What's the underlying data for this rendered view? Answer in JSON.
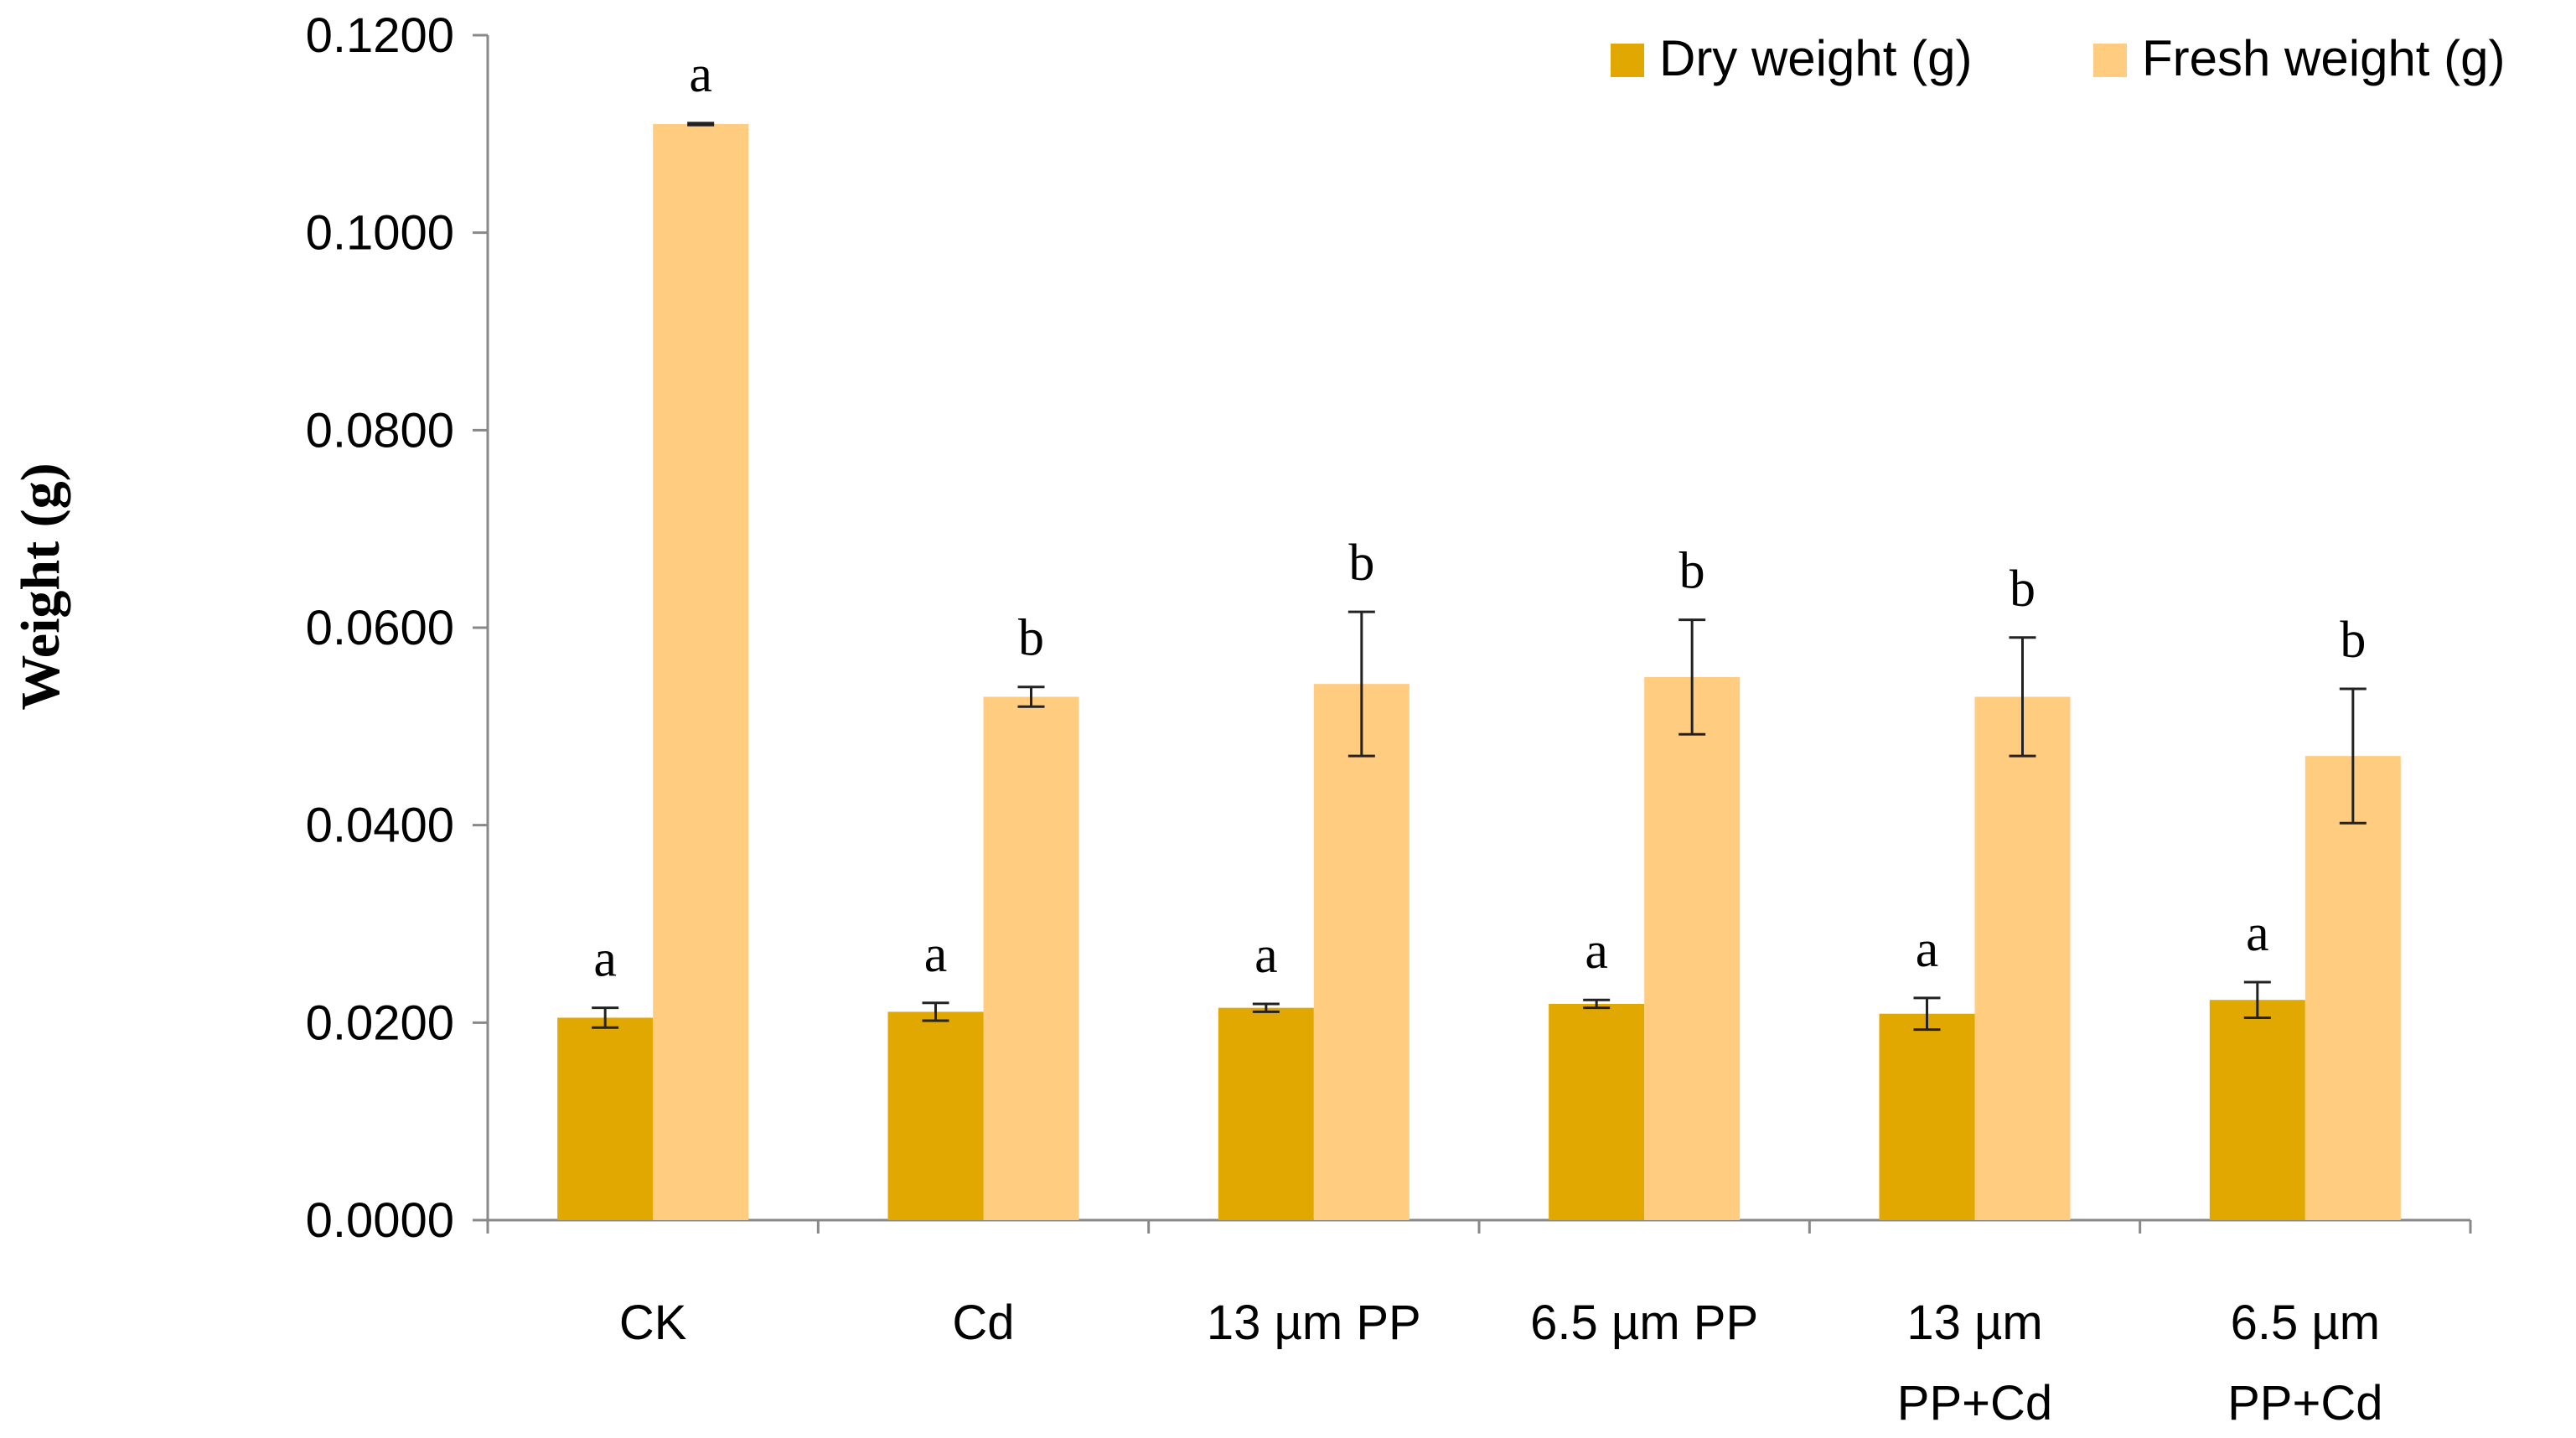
{
  "chart_data": {
    "type": "bar",
    "title": "",
    "xlabel": "",
    "ylabel": "Weight (g)",
    "ylim": [
      0,
      0.12
    ],
    "yticks": [
      "0.0000",
      "0.0200",
      "0.0400",
      "0.0600",
      "0.0800",
      "0.1000",
      "0.1200"
    ],
    "ytick_values": [
      0,
      0.02,
      0.04,
      0.06,
      0.08,
      0.1,
      0.12
    ],
    "grid": false,
    "legend_position": "top-right",
    "categories": [
      [
        "CK"
      ],
      [
        "Cd"
      ],
      [
        "13 µm PP"
      ],
      [
        "6.5 µm PP"
      ],
      [
        "13 µm",
        "PP+Cd"
      ],
      [
        "6.5 µm",
        "PP+Cd"
      ]
    ],
    "series": [
      {
        "name": "Dry weight (g)",
        "color": "#E0A800",
        "values": [
          0.0205,
          0.0211,
          0.0215,
          0.0219,
          0.0209,
          0.0223
        ],
        "errors": [
          0.001,
          0.0009,
          0.0004,
          0.0004,
          0.0016,
          0.0018
        ],
        "labels": [
          "a",
          "a",
          "a",
          "a",
          "a",
          "a"
        ]
      },
      {
        "name": "Fresh weight (g)",
        "color": "#FFCC80",
        "values": [
          0.111,
          0.053,
          0.0543,
          0.055,
          0.053,
          0.047
        ],
        "errors": [
          0.0001,
          0.001,
          0.0073,
          0.0058,
          0.006,
          0.0068
        ],
        "labels": [
          "a",
          "b",
          "b",
          "b",
          "b",
          "b"
        ]
      }
    ]
  }
}
